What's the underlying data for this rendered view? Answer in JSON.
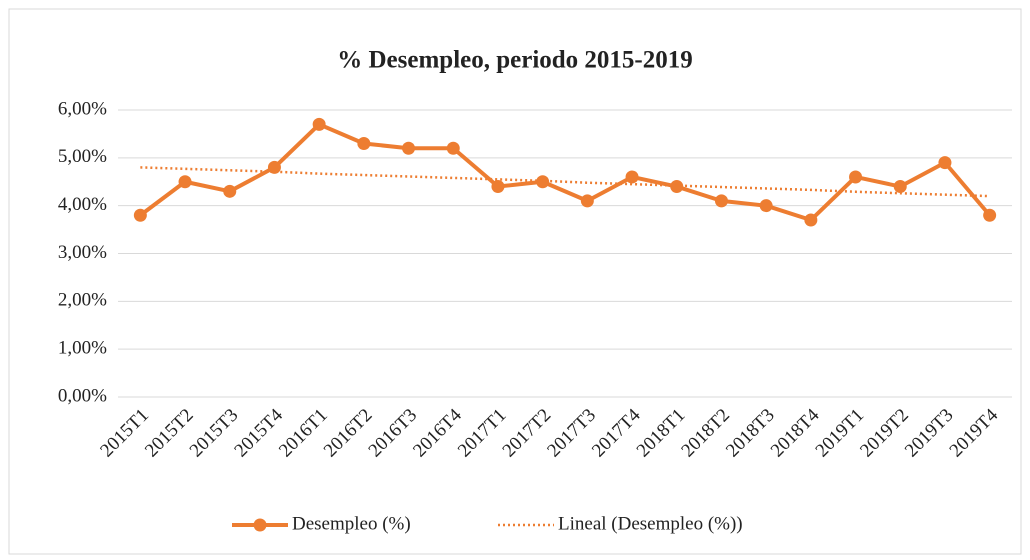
{
  "chart_data": {
    "type": "line",
    "title": "% Desempleo, periodo 2015-2019",
    "categories": [
      "2015T1",
      "2015T2",
      "2015T3",
      "2015T4",
      "2016T1",
      "2016T2",
      "2016T3",
      "2016T4",
      "2017T1",
      "2017T2",
      "2017T3",
      "2017T4",
      "2018T1",
      "2018T2",
      "2018T3",
      "2018T4",
      "2019T1",
      "2019T2",
      "2019T3",
      "2019T4"
    ],
    "series": [
      {
        "name": "Desempleo (%)",
        "color": "#ED7D31",
        "values": [
          3.8,
          4.5,
          4.3,
          4.8,
          5.7,
          5.3,
          5.2,
          5.2,
          4.4,
          4.5,
          4.1,
          4.6,
          4.4,
          4.1,
          4.0,
          3.7,
          4.6,
          4.4,
          4.9,
          3.8
        ]
      },
      {
        "name": "Lineal (Desempleo (%))",
        "color": "#ED7D31",
        "dashed": true,
        "values": [
          4.8,
          4.77,
          4.74,
          4.71,
          4.67,
          4.64,
          4.61,
          4.58,
          4.55,
          4.52,
          4.48,
          4.45,
          4.42,
          4.39,
          4.36,
          4.33,
          4.29,
          4.26,
          4.23,
          4.2
        ]
      }
    ],
    "ylim": [
      0,
      6
    ],
    "yticks": [
      {
        "value": 0,
        "label": "0,00%"
      },
      {
        "value": 1,
        "label": "1,00%"
      },
      {
        "value": 2,
        "label": "2,00%"
      },
      {
        "value": 3,
        "label": "3,00%"
      },
      {
        "value": 4,
        "label": "4,00%"
      },
      {
        "value": 5,
        "label": "5,00%"
      },
      {
        "value": 6,
        "label": "6,00%"
      }
    ],
    "grid": true,
    "legend": "bottom"
  }
}
